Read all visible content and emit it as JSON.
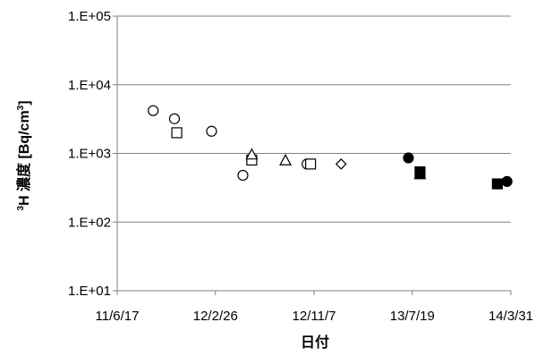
{
  "chart_data": {
    "type": "scatter",
    "title": "",
    "xlabel": "日付",
    "ylabel_prefix": "3",
    "ylabel": "H 濃度 [Bq/cm",
    "ylabel_sup": "3",
    "ylabel_suffix": "]",
    "yscale": "log",
    "ylim": [
      10,
      100000
    ],
    "xlim": [
      "2011-06-17",
      "2014-03-31"
    ],
    "x_ticks": [
      "2011-06-17",
      "2012-02-26",
      "2012-11-07",
      "2013-07-19",
      "2014-03-31"
    ],
    "x_tick_labels": [
      "11/6/17",
      "12/2/26",
      "12/11/7",
      "13/7/19",
      "14/3/31"
    ],
    "y_ticks": [
      10,
      100,
      1000,
      10000,
      100000
    ],
    "y_tick_labels": [
      "1.E+01",
      "1.E+02",
      "1.E+03",
      "1.E+04",
      "1.E+05"
    ],
    "grid": {
      "horizontal": true,
      "vertical": false
    },
    "colors": {
      "axis": "#808080",
      "grid": "#808080",
      "marker": "#000000"
    },
    "series": [
      {
        "marker": "circle-open",
        "points": [
          {
            "x": "2011-09-18",
            "y": 4200
          },
          {
            "x": "2011-11-12",
            "y": 3200
          },
          {
            "x": "2012-02-16",
            "y": 2100
          },
          {
            "x": "2012-05-07",
            "y": 480
          },
          {
            "x": "2012-10-20",
            "y": 700
          }
        ]
      },
      {
        "marker": "square-open",
        "points": [
          {
            "x": "2011-11-18",
            "y": 2000
          },
          {
            "x": "2012-05-30",
            "y": 800
          },
          {
            "x": "2012-10-29",
            "y": 700
          }
        ]
      },
      {
        "marker": "triangle-open",
        "points": [
          {
            "x": "2012-05-30",
            "y": 950
          },
          {
            "x": "2012-08-25",
            "y": 780
          }
        ]
      },
      {
        "marker": "diamond-open",
        "points": [
          {
            "x": "2013-01-16",
            "y": 700
          }
        ]
      },
      {
        "marker": "circle-filled",
        "points": [
          {
            "x": "2013-07-09",
            "y": 860
          },
          {
            "x": "2014-03-21",
            "y": 390
          }
        ]
      },
      {
        "marker": "square-filled",
        "points": [
          {
            "x": "2013-08-08",
            "y": 540
          },
          {
            "x": "2014-02-24",
            "y": 360
          }
        ]
      },
      {
        "marker": "triangle-filled",
        "points": [
          {
            "x": "2013-08-08",
            "y": 490
          }
        ]
      }
    ]
  }
}
